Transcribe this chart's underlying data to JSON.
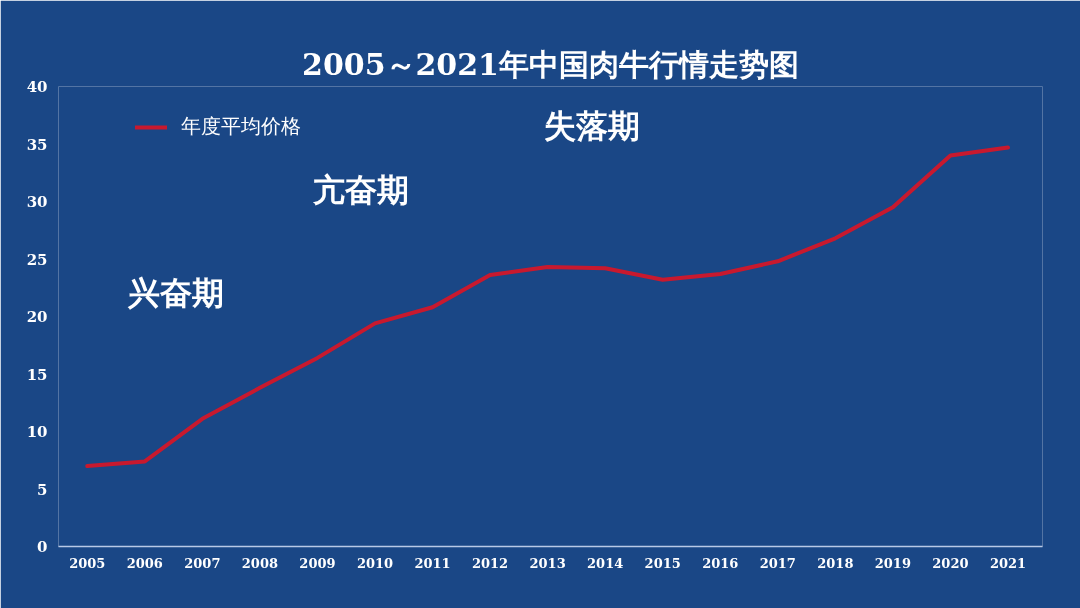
{
  "chart_data": {
    "type": "line",
    "title": "2005～2021年中国肉牛行情走势图",
    "x": [
      2005,
      2006,
      2007,
      2008,
      2009,
      2010,
      2011,
      2012,
      2013,
      2014,
      2015,
      2016,
      2017,
      2018,
      2019,
      2020,
      2021
    ],
    "series": [
      {
        "name": "年度平均价格",
        "color": "#c8192e",
        "values": [
          7.0,
          7.4,
          11.1,
          13.8,
          16.4,
          19.4,
          20.8,
          23.6,
          24.3,
          24.2,
          23.2,
          23.7,
          24.8,
          26.8,
          29.5,
          34.0,
          34.7
        ]
      }
    ],
    "xlim": [
      2004.5,
      2021.6
    ],
    "xticks": [
      2005,
      2006,
      2007,
      2008,
      2009,
      2010,
      2011,
      2012,
      2013,
      2014,
      2015,
      2016,
      2017,
      2018,
      2019,
      2020,
      2021
    ],
    "ylim": [
      0,
      40
    ],
    "yticks": [
      0,
      5,
      10,
      15,
      20,
      25,
      30,
      35,
      40
    ],
    "legend": "top left",
    "annotations": [
      "兴奋期",
      "亢奋期",
      "失落期"
    ]
  }
}
